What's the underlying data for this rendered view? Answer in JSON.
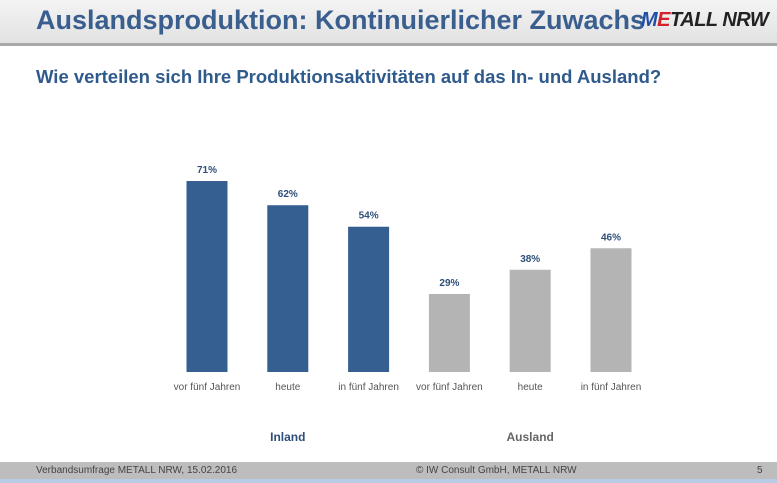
{
  "header": {
    "title": "Auslandsproduktion: Kontinuierlicher Zuwachs",
    "logo": {
      "m": "M",
      "e": "E",
      "rest": "TALL NRW"
    }
  },
  "chart_data": {
    "type": "bar",
    "title": "Wie verteilen sich Ihre Produktionsaktivitäten auf das In- und Ausland?",
    "groups": [
      "Inland",
      "Ausland"
    ],
    "categories": [
      "vor fünf Jahren",
      "heute",
      "in fünf Jahren",
      "vor fünf Jahren",
      "heute",
      "in fünf Jahren"
    ],
    "values": [
      71,
      62,
      54,
      29,
      38,
      46
    ],
    "value_labels": [
      "71%",
      "62%",
      "54%",
      "29%",
      "38%",
      "46%"
    ],
    "group_of": [
      0,
      0,
      0,
      1,
      1,
      1
    ],
    "colors": [
      "#365f91",
      "#b4b4b4"
    ],
    "ylim": [
      0,
      100
    ]
  },
  "footer": {
    "left": "Verbandsumfrage METALL NRW, 15.02.2016",
    "center": "© IW Consult GmbH, METALL NRW",
    "page": "5"
  }
}
